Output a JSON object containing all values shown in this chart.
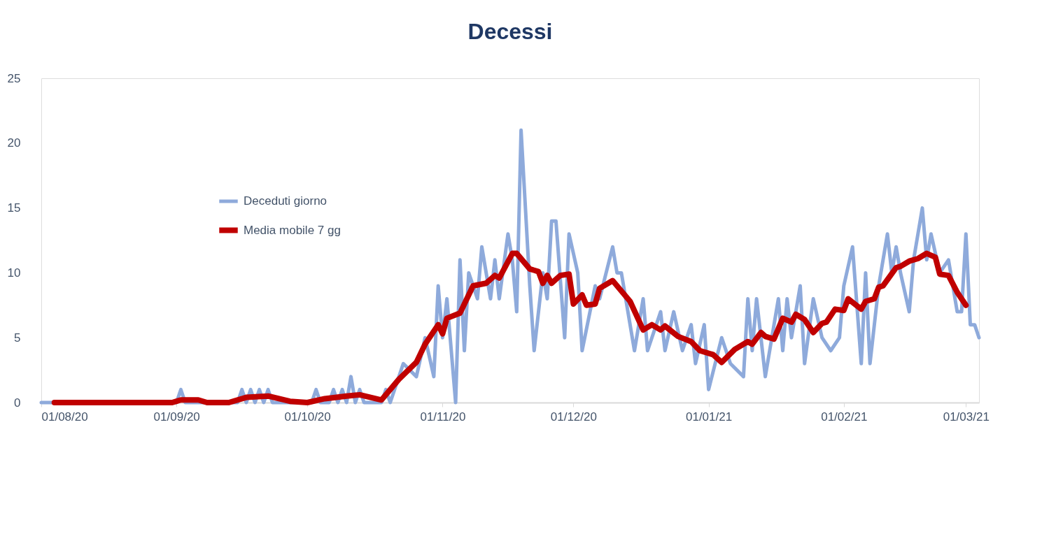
{
  "chart_data": {
    "type": "line",
    "title": "Decessi",
    "xlim": [
      "2020-08-01",
      "2021-03-04"
    ],
    "xticks": [
      {
        "value": "2020-08-01",
        "label": "01/08/20"
      },
      {
        "value": "2020-09-01",
        "label": "01/09/20"
      },
      {
        "value": "2020-10-01",
        "label": "01/10/20"
      },
      {
        "value": "2020-11-01",
        "label": "01/11/20"
      },
      {
        "value": "2020-12-01",
        "label": "01/12/20"
      },
      {
        "value": "2021-01-01",
        "label": "01/01/21"
      },
      {
        "value": "2021-02-01",
        "label": "01/02/21"
      },
      {
        "value": "2021-03-01",
        "label": "01/03/21"
      }
    ],
    "ylim": [
      0,
      25
    ],
    "yticks": [
      0,
      5,
      10,
      15,
      20,
      25
    ],
    "grid": false,
    "legend": "top left",
    "line_style": "solid",
    "series": [
      {
        "name": "Deceduti giorno",
        "color": "#8eaadb",
        "x": [
          "2020-08-01",
          "2020-09-01",
          "2020-09-02",
          "2020-09-03",
          "2020-09-15",
          "2020-09-16",
          "2020-09-17",
          "2020-09-18",
          "2020-09-19",
          "2020-09-20",
          "2020-09-21",
          "2020-09-22",
          "2020-09-23",
          "2020-10-02",
          "2020-10-03",
          "2020-10-04",
          "2020-10-06",
          "2020-10-07",
          "2020-10-08",
          "2020-10-09",
          "2020-10-10",
          "2020-10-11",
          "2020-10-12",
          "2020-10-13",
          "2020-10-14",
          "2020-10-18",
          "2020-10-19",
          "2020-10-20",
          "2020-10-23",
          "2020-10-26",
          "2020-10-28",
          "2020-10-30",
          "2020-10-31",
          "2020-11-01",
          "2020-11-02",
          "2020-11-04",
          "2020-11-05",
          "2020-11-06",
          "2020-11-07",
          "2020-11-09",
          "2020-11-10",
          "2020-11-12",
          "2020-11-13",
          "2020-11-14",
          "2020-11-16",
          "2020-11-17",
          "2020-11-18",
          "2020-11-19",
          "2020-11-21",
          "2020-11-22",
          "2020-11-24",
          "2020-11-25",
          "2020-11-26",
          "2020-11-27",
          "2020-11-29",
          "2020-11-30",
          "2020-12-02",
          "2020-12-03",
          "2020-12-06",
          "2020-12-07",
          "2020-12-10",
          "2020-12-11",
          "2020-12-12",
          "2020-12-15",
          "2020-12-17",
          "2020-12-18",
          "2020-12-21",
          "2020-12-22",
          "2020-12-24",
          "2020-12-26",
          "2020-12-28",
          "2020-12-29",
          "2020-12-31",
          "2021-01-01",
          "2021-01-04",
          "2021-01-06",
          "2021-01-09",
          "2021-01-10",
          "2021-01-11",
          "2021-01-12",
          "2021-01-14",
          "2021-01-17",
          "2021-01-18",
          "2021-01-19",
          "2021-01-20",
          "2021-01-22",
          "2021-01-23",
          "2021-01-25",
          "2021-01-27",
          "2021-01-29",
          "2021-01-31",
          "2021-02-01",
          "2021-02-03",
          "2021-02-05",
          "2021-02-06",
          "2021-02-07",
          "2021-02-09",
          "2021-02-11",
          "2021-02-12",
          "2021-02-13",
          "2021-02-14",
          "2021-02-16",
          "2021-02-17",
          "2021-02-19",
          "2021-02-20",
          "2021-02-21",
          "2021-02-23",
          "2021-02-25",
          "2021-02-27",
          "2021-02-28",
          "2021-03-01",
          "2021-03-02",
          "2021-03-03",
          "2021-03-04"
        ],
        "values": [
          0,
          0,
          1,
          0,
          0,
          1,
          0,
          1,
          0,
          1,
          0,
          1,
          0,
          0,
          1,
          0,
          0,
          1,
          0,
          1,
          0,
          2,
          0,
          1,
          0,
          0,
          1,
          0,
          3,
          2,
          5,
          2,
          9,
          5,
          8,
          0,
          11,
          4,
          10,
          8,
          12,
          8,
          11,
          8,
          13,
          11,
          7,
          21,
          9,
          4,
          10,
          8,
          14,
          14,
          5,
          13,
          10,
          4,
          9,
          8,
          12,
          10,
          10,
          4,
          8,
          4,
          7,
          4,
          7,
          4,
          6,
          3,
          6,
          1,
          5,
          3,
          2,
          8,
          4,
          8,
          2,
          8,
          4,
          8,
          5,
          9,
          3,
          8,
          5,
          4,
          5,
          9,
          12,
          3,
          10,
          3,
          9,
          13,
          10,
          12,
          10,
          7,
          11,
          15,
          11,
          13,
          10,
          11,
          7,
          7,
          13,
          6,
          6,
          5
        ]
      },
      {
        "name": "Media mobile 7 gg",
        "color": "#c00000",
        "x": [
          "2020-08-04",
          "2020-08-31",
          "2020-09-02",
          "2020-09-06",
          "2020-09-08",
          "2020-09-13",
          "2020-09-17",
          "2020-09-22",
          "2020-09-27",
          "2020-10-01",
          "2020-10-05",
          "2020-10-10",
          "2020-10-13",
          "2020-10-18",
          "2020-10-22",
          "2020-10-26",
          "2020-10-28",
          "2020-10-31",
          "2020-11-01",
          "2020-11-02",
          "2020-11-05",
          "2020-11-06",
          "2020-11-08",
          "2020-11-11",
          "2020-11-13",
          "2020-11-14",
          "2020-11-17",
          "2020-11-18",
          "2020-11-21",
          "2020-11-23",
          "2020-11-24",
          "2020-11-25",
          "2020-11-26",
          "2020-11-28",
          "2020-11-30",
          "2020-12-01",
          "2020-12-03",
          "2020-12-04",
          "2020-12-06",
          "2020-12-07",
          "2020-12-10",
          "2020-12-14",
          "2020-12-17",
          "2020-12-19",
          "2020-12-21",
          "2020-12-22",
          "2020-12-25",
          "2020-12-28",
          "2020-12-30",
          "2021-01-02",
          "2021-01-04",
          "2021-01-07",
          "2021-01-10",
          "2021-01-11",
          "2021-01-13",
          "2021-01-14",
          "2021-01-16",
          "2021-01-18",
          "2021-01-20",
          "2021-01-21",
          "2021-01-23",
          "2021-01-25",
          "2021-01-27",
          "2021-01-28",
          "2021-01-30",
          "2021-02-01",
          "2021-02-02",
          "2021-02-05",
          "2021-02-06",
          "2021-02-08",
          "2021-02-09",
          "2021-02-10",
          "2021-02-13",
          "2021-02-14",
          "2021-02-16",
          "2021-02-18",
          "2021-02-20",
          "2021-02-22",
          "2021-02-23",
          "2021-02-25",
          "2021-02-27",
          "2021-03-01"
        ],
        "values": [
          0,
          0,
          0.2,
          0.2,
          0,
          0,
          0.4,
          0.5,
          0.1,
          0,
          0.3,
          0.5,
          0.6,
          0.2,
          1.8,
          3.1,
          4.5,
          6,
          5.3,
          6.5,
          6.9,
          7.6,
          9,
          9.2,
          9.8,
          9.6,
          11.5,
          11.5,
          10.3,
          10.1,
          9.2,
          9.8,
          9.2,
          9.8,
          9.9,
          7.6,
          8.3,
          7.5,
          7.6,
          8.8,
          9.4,
          7.8,
          5.6,
          6,
          5.6,
          5.9,
          5.1,
          4.7,
          4,
          3.7,
          3.1,
          4.1,
          4.7,
          4.5,
          5.4,
          5.1,
          4.9,
          6.5,
          6.2,
          6.8,
          6.4,
          5.4,
          6.1,
          6.2,
          7.2,
          7.1,
          8,
          7.2,
          7.8,
          8,
          8.9,
          9,
          10.4,
          10.5,
          10.9,
          11.1,
          11.5,
          11.2,
          9.9,
          9.8,
          8.5,
          7.5
        ]
      }
    ]
  }
}
